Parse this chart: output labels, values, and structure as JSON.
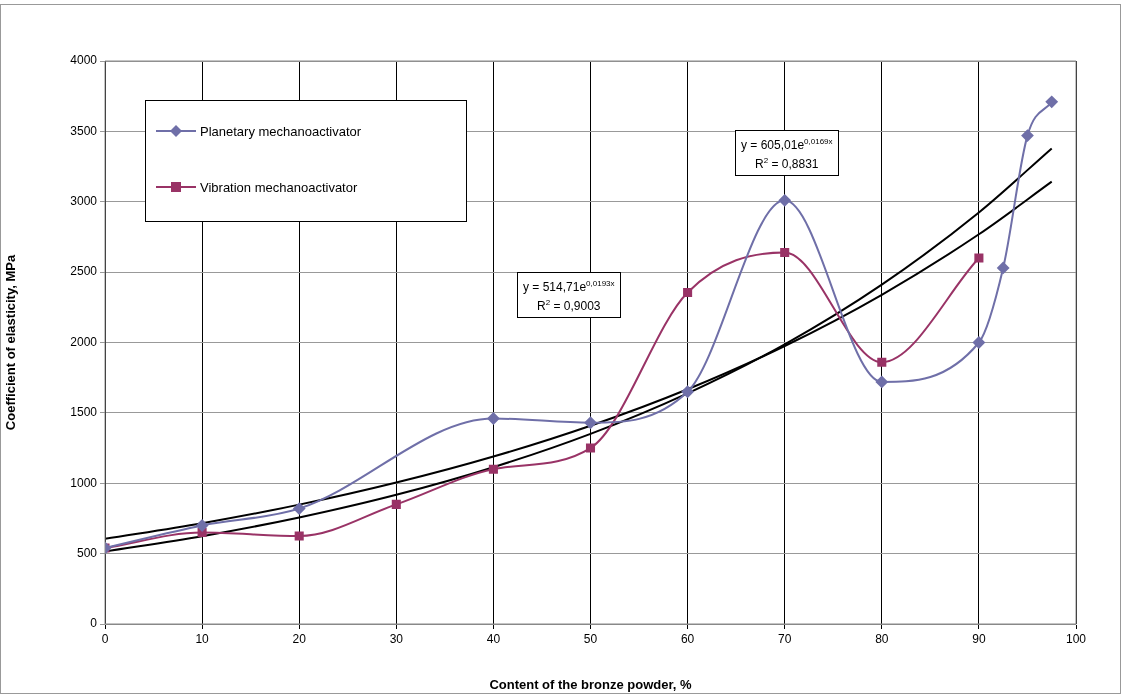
{
  "chart_data": {
    "type": "line",
    "xlabel": "Content of the bronze powder, %",
    "ylabel": "Coefficient of elasticity, MPa",
    "xlim": [
      0,
      100
    ],
    "xticks": [
      0,
      10,
      20,
      30,
      40,
      50,
      60,
      70,
      80,
      90,
      100
    ],
    "ylim": [
      0,
      4000
    ],
    "yticks": [
      0,
      500,
      1000,
      1500,
      2000,
      2500,
      3000,
      3500,
      4000
    ],
    "grid": true,
    "legend": "top left",
    "line_style": "solid",
    "series": [
      {
        "name": "Planetary mechanoactivator",
        "color": "#6f6fa8",
        "marker": "diamond",
        "x": [
          0,
          10,
          20,
          40,
          50,
          60,
          70,
          80,
          90,
          92.5,
          95,
          97.5
        ],
        "values": [
          540,
          700,
          820,
          1460,
          1430,
          1650,
          3010,
          1720,
          2000,
          2530,
          3470,
          3710
        ]
      },
      {
        "name": "Vibration mechanoactivator",
        "color": "#993366",
        "marker": "square",
        "x": [
          0,
          10,
          20,
          30,
          40,
          50,
          60,
          70,
          80,
          90
        ],
        "values": [
          540,
          650,
          625,
          850,
          1100,
          1250,
          2355,
          2640,
          1860,
          2600
        ]
      },
      {
        "type": "line",
        "color": "#000000",
        "marker": "none",
        "x": [
          0,
          10,
          20,
          30,
          40,
          50,
          60,
          70,
          80,
          90,
          97.5
        ],
        "values": [
          605,
          716,
          848,
          1005,
          1190,
          1409,
          1668,
          1975,
          2339,
          2769,
          3143
        ]
      },
      {
        "type": "line",
        "color": "#000000",
        "marker": "none",
        "x": [
          0,
          10,
          20,
          30,
          40,
          50,
          60,
          70,
          80,
          90,
          97.5
        ],
        "values": [
          515,
          624,
          757,
          918,
          1114,
          1351,
          1639,
          1987,
          2411,
          2924,
          3379
        ]
      }
    ],
    "annotations": [
      "y = 605,01e$^{0,0169x}$\nR$^{2}$ = 0,8831",
      "y = 514,71e$^{0,0193x}$\nR$^{2}$ = 0,9003"
    ]
  }
}
